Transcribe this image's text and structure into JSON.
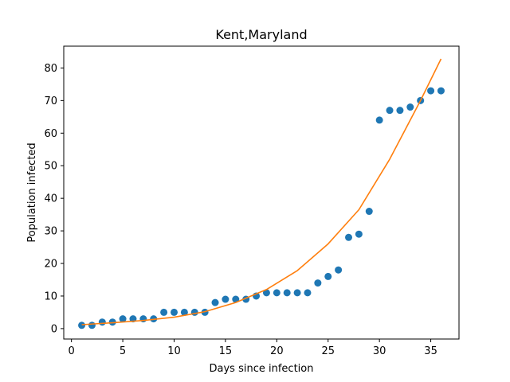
{
  "chart_data": {
    "type": "scatter",
    "title": "Kent,Maryland",
    "xlabel": "Days since infection",
    "ylabel": "Population infected",
    "xlim": [
      -0.75,
      37.75
    ],
    "ylim": [
      -3.2,
      86.7
    ],
    "xticks": [
      0,
      5,
      10,
      15,
      20,
      25,
      30,
      35
    ],
    "yticks": [
      0,
      10,
      20,
      30,
      40,
      50,
      60,
      70,
      80
    ],
    "grid": false,
    "series": [
      {
        "kind": "points",
        "color": "#1f77b4",
        "x": [
          1,
          2,
          3,
          4,
          5,
          6,
          7,
          8,
          9,
          10,
          11,
          12,
          13,
          14,
          15,
          16,
          17,
          18,
          19,
          20,
          21,
          22,
          23,
          24,
          25,
          26,
          27,
          28,
          29,
          30,
          31,
          32,
          33,
          34,
          35,
          36
        ],
        "y": [
          1,
          1,
          2,
          2,
          3,
          3,
          3,
          3,
          5,
          5,
          5,
          5,
          5,
          8,
          9,
          9,
          9,
          10,
          11,
          11,
          11,
          11,
          11,
          14,
          16,
          18,
          28,
          29,
          36,
          64,
          67,
          67,
          68,
          70,
          73,
          73
        ]
      },
      {
        "kind": "fit-line",
        "color": "#ff7f0e",
        "x": [
          1,
          4,
          7,
          10,
          13,
          16,
          19,
          22,
          25,
          28,
          31,
          34,
          36
        ],
        "y": [
          1.2,
          1.8,
          2.5,
          3.5,
          5.2,
          8.0,
          12.0,
          17.8,
          26.0,
          36.5,
          52.0,
          70.0,
          82.8
        ]
      }
    ]
  }
}
